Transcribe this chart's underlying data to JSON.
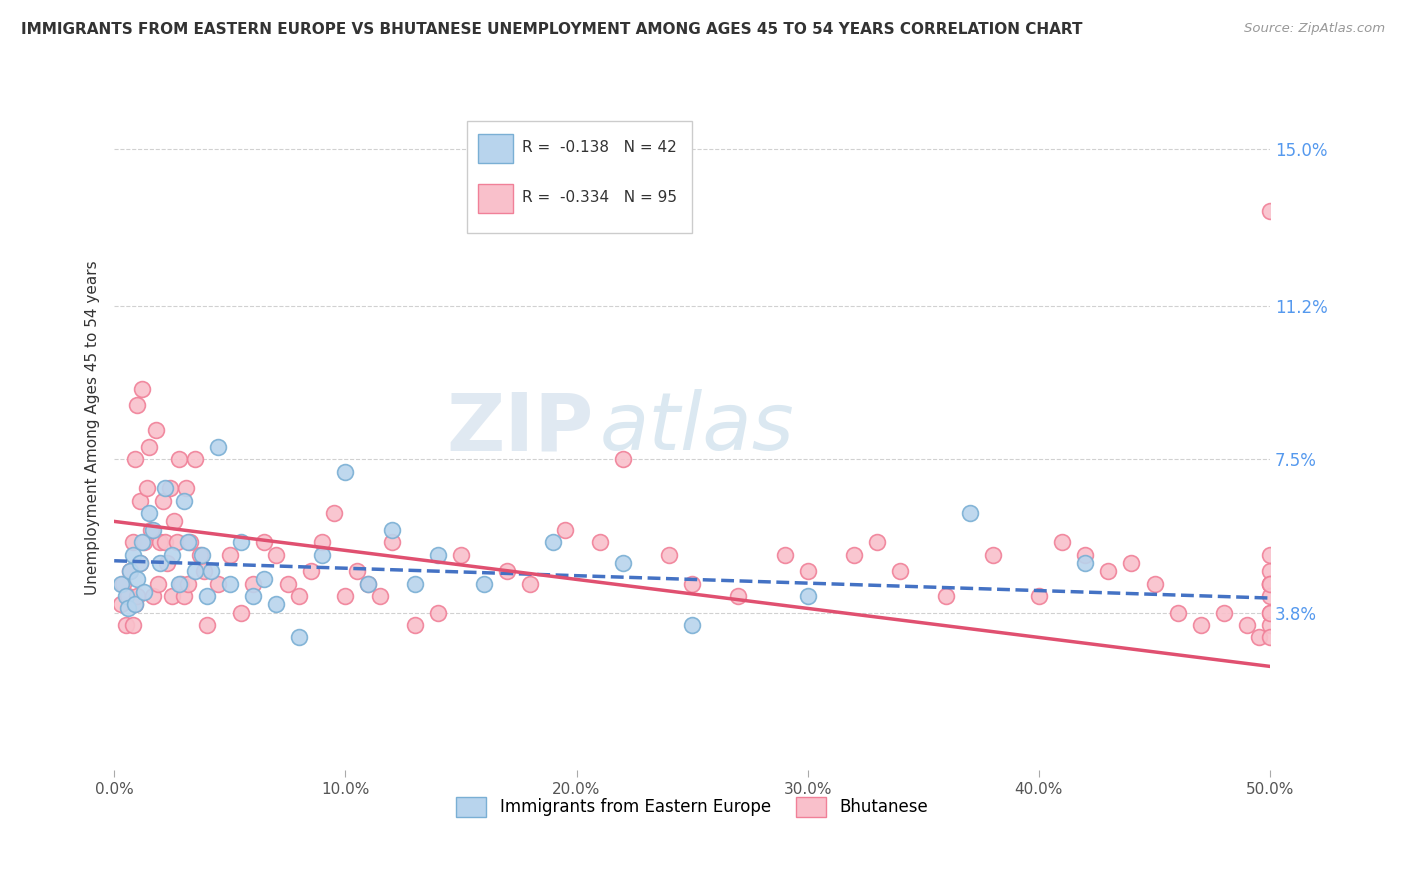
{
  "title": "IMMIGRANTS FROM EASTERN EUROPE VS BHUTANESE UNEMPLOYMENT AMONG AGES 45 TO 54 YEARS CORRELATION CHART",
  "source": "Source: ZipAtlas.com",
  "ylabel": "Unemployment Among Ages 45 to 54 years",
  "xlim": [
    0.0,
    50.0
  ],
  "ylim": [
    0.0,
    16.5
  ],
  "yticks": [
    3.8,
    7.5,
    11.2,
    15.0
  ],
  "xticks": [
    0.0,
    10.0,
    20.0,
    30.0,
    40.0,
    50.0
  ],
  "xtick_labels": [
    "0.0%",
    "10.0%",
    "20.0%",
    "30.0%",
    "40.0%",
    "50.0%"
  ],
  "ytick_labels": [
    "3.8%",
    "7.5%",
    "11.2%",
    "15.0%"
  ],
  "blue_color": "#b8d4ed",
  "pink_color": "#f9c0cb",
  "blue_edge": "#7aafd4",
  "pink_edge": "#f08098",
  "blue_line_color": "#4472c4",
  "pink_line_color": "#e05070",
  "blue_r": "-0.138",
  "blue_n": "42",
  "pink_r": "-0.334",
  "pink_n": "95",
  "watermark": "ZIPAtlas",
  "blue_scatter_x": [
    0.3,
    0.5,
    0.6,
    0.7,
    0.8,
    0.9,
    1.0,
    1.1,
    1.2,
    1.3,
    1.5,
    1.7,
    2.0,
    2.2,
    2.5,
    2.8,
    3.0,
    3.2,
    3.5,
    3.8,
    4.0,
    4.2,
    4.5,
    5.0,
    5.5,
    6.0,
    6.5,
    7.0,
    8.0,
    9.0,
    10.0,
    11.0,
    12.0,
    13.0,
    14.0,
    16.0,
    19.0,
    22.0,
    25.0,
    30.0,
    37.0,
    42.0
  ],
  "blue_scatter_y": [
    4.5,
    4.2,
    3.9,
    4.8,
    5.2,
    4.0,
    4.6,
    5.0,
    5.5,
    4.3,
    6.2,
    5.8,
    5.0,
    6.8,
    5.2,
    4.5,
    6.5,
    5.5,
    4.8,
    5.2,
    4.2,
    4.8,
    7.8,
    4.5,
    5.5,
    4.2,
    4.6,
    4.0,
    3.2,
    5.2,
    7.2,
    4.5,
    5.8,
    4.5,
    5.2,
    4.5,
    5.5,
    5.0,
    3.5,
    4.2,
    6.2,
    5.0
  ],
  "pink_scatter_x": [
    0.3,
    0.4,
    0.5,
    0.6,
    0.7,
    0.8,
    0.8,
    0.9,
    0.9,
    1.0,
    1.0,
    1.1,
    1.1,
    1.2,
    1.3,
    1.4,
    1.5,
    1.6,
    1.7,
    1.8,
    1.9,
    2.0,
    2.1,
    2.2,
    2.3,
    2.4,
    2.5,
    2.6,
    2.7,
    2.8,
    2.9,
    3.0,
    3.1,
    3.2,
    3.3,
    3.5,
    3.7,
    3.9,
    4.0,
    4.5,
    5.0,
    5.5,
    6.0,
    6.5,
    7.0,
    7.5,
    8.0,
    8.5,
    9.0,
    9.5,
    10.0,
    10.5,
    11.0,
    11.5,
    12.0,
    13.0,
    14.0,
    15.0,
    17.0,
    18.0,
    19.5,
    21.0,
    22.0,
    24.0,
    25.0,
    27.0,
    29.0,
    30.0,
    32.0,
    33.0,
    34.0,
    36.0,
    38.0,
    40.0,
    41.0,
    42.0,
    43.0,
    44.0,
    45.0,
    46.0,
    47.0,
    48.0,
    49.0,
    49.5,
    50.0,
    50.0,
    50.0,
    50.0,
    50.0,
    50.0,
    50.0,
    50.0,
    50.0,
    50.0,
    50.0
  ],
  "pink_scatter_y": [
    4.0,
    4.5,
    3.5,
    4.2,
    4.8,
    3.5,
    5.5,
    4.0,
    7.5,
    4.2,
    8.8,
    5.0,
    6.5,
    9.2,
    5.5,
    6.8,
    7.8,
    5.8,
    4.2,
    8.2,
    4.5,
    5.5,
    6.5,
    5.5,
    5.0,
    6.8,
    4.2,
    6.0,
    5.5,
    7.5,
    4.5,
    4.2,
    6.8,
    4.5,
    5.5,
    7.5,
    5.2,
    4.8,
    3.5,
    4.5,
    5.2,
    3.8,
    4.5,
    5.5,
    5.2,
    4.5,
    4.2,
    4.8,
    5.5,
    6.2,
    4.2,
    4.8,
    4.5,
    4.2,
    5.5,
    3.5,
    3.8,
    5.2,
    4.8,
    4.5,
    5.8,
    5.5,
    7.5,
    5.2,
    4.5,
    4.2,
    5.2,
    4.8,
    5.2,
    5.5,
    4.8,
    4.2,
    5.2,
    4.2,
    5.5,
    5.2,
    4.8,
    5.0,
    4.5,
    3.8,
    3.5,
    3.8,
    3.5,
    3.2,
    4.5,
    4.8,
    5.2,
    4.5,
    3.8,
    4.2,
    3.5,
    3.2,
    3.8,
    4.5,
    13.5
  ]
}
